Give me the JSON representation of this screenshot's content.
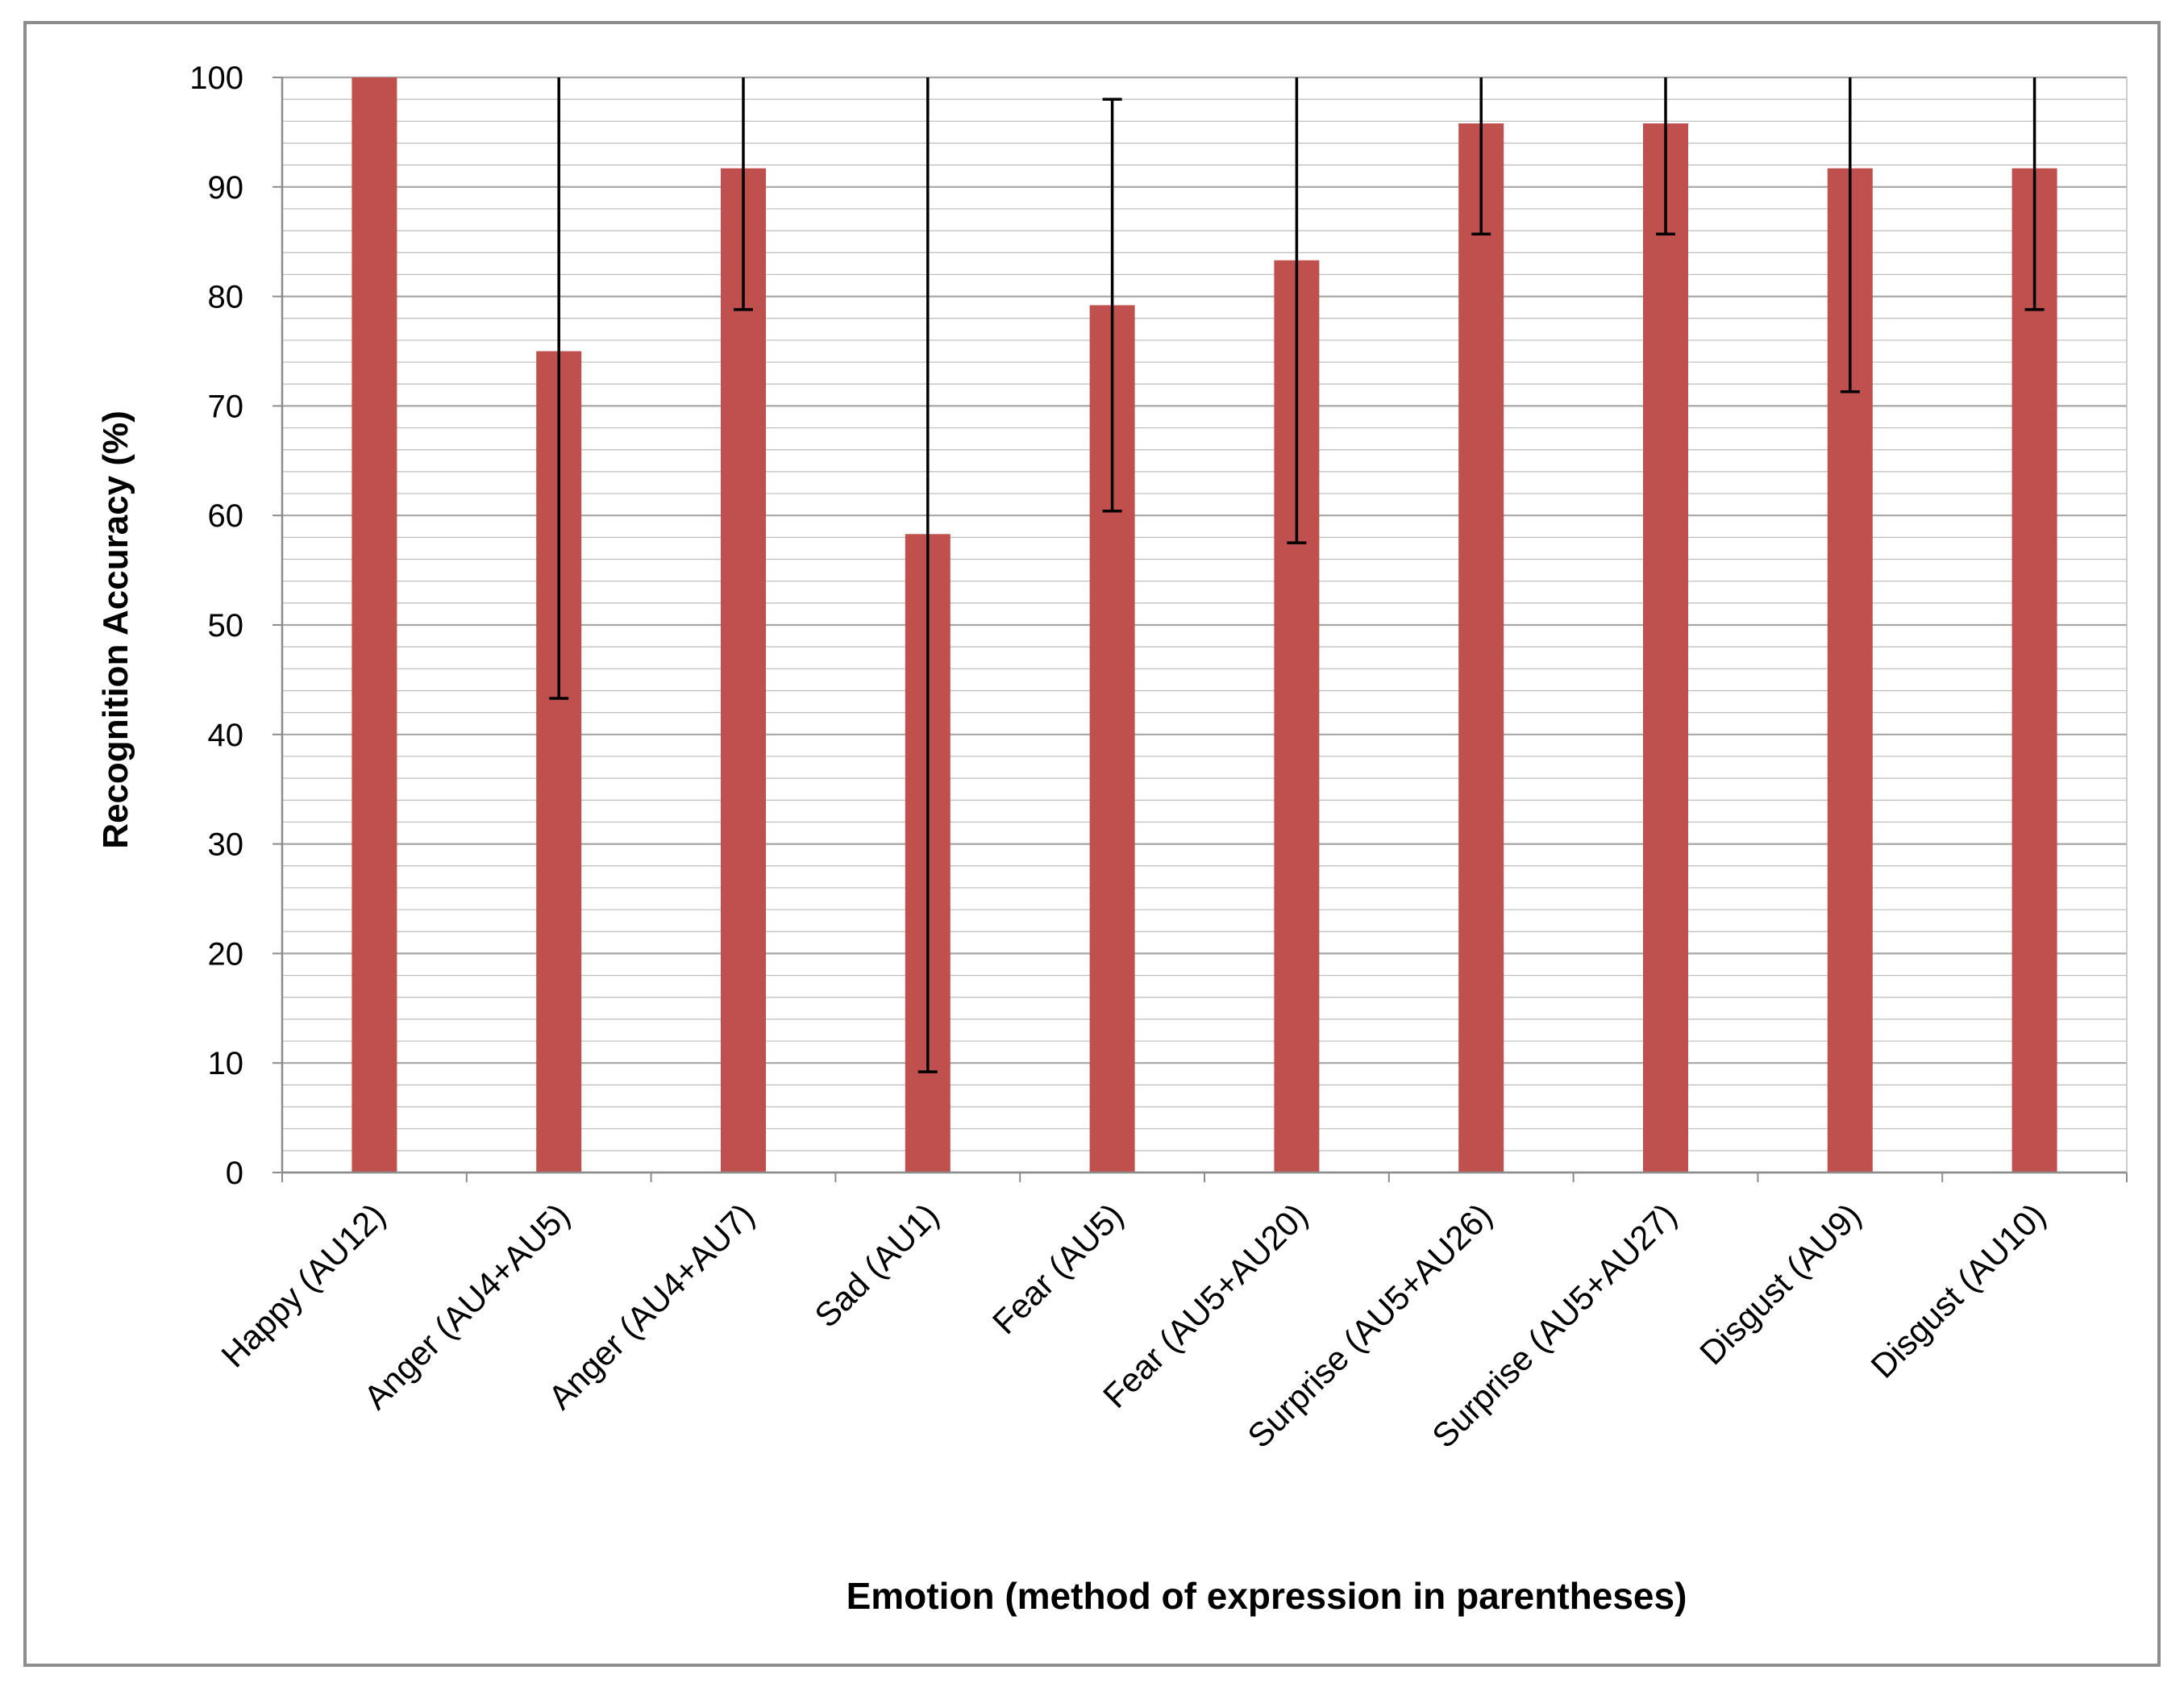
{
  "chart_data": {
    "type": "bar",
    "title": "",
    "xlabel": "Emotion (method of expression in parentheses)",
    "ylabel": "Recognition Accuracy (%)",
    "ylim": [
      0,
      100
    ],
    "yticks": [
      0,
      10,
      20,
      30,
      40,
      50,
      60,
      70,
      80,
      90,
      100
    ],
    "ytick_labels": [
      "0",
      "10",
      "20",
      "30",
      "40",
      "50",
      "60",
      "70",
      "80",
      "90",
      "100"
    ],
    "grid": true,
    "minor_grid_step": 2,
    "legend": "none",
    "categories": [
      "Happy (AU12)",
      "Anger (AU4+AU5)",
      "Anger (AU4+AU7)",
      "Sad (AU1)",
      "Fear (AU5)",
      "Fear (AU5+AU20)",
      "Surprise (AU5+AU26)",
      "Surprise (AU5+AU27)",
      "Disgust (AU9)",
      "Disgust (AU10)"
    ],
    "series": [
      {
        "values": [
          100,
          75,
          91.7,
          58.3,
          79.2,
          83.3,
          95.8,
          95.8,
          91.7,
          91.7
        ],
        "error_low": [
          100,
          43.3,
          78.8,
          9.2,
          60.4,
          57.5,
          85.7,
          85.7,
          71.3,
          78.8
        ],
        "error_high": [
          100,
          106.7,
          104.6,
          107.4,
          98,
          109.1,
          105.9,
          105.9,
          112.1,
          104.6
        ],
        "color": "#c0504d"
      }
    ],
    "colors": {
      "bar": "#c0504d",
      "error_bar": "#000000",
      "grid": "#a6a6a6",
      "frame": "#8c8c8c"
    }
  }
}
